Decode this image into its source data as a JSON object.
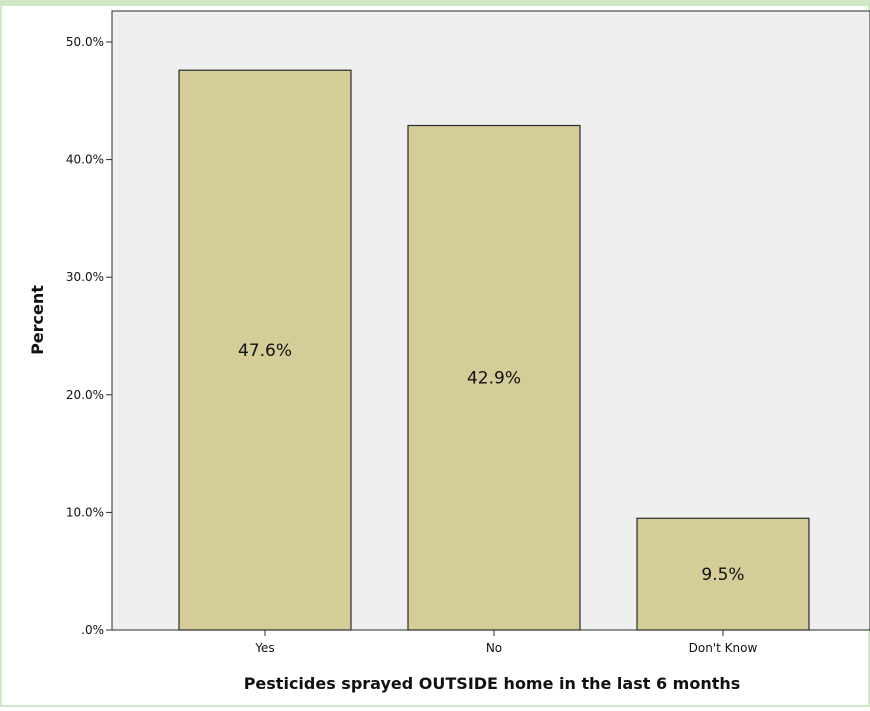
{
  "chart_data": {
    "type": "bar",
    "title": "",
    "xlabel": "Pesticides sprayed OUTSIDE home in the last 6 months",
    "ylabel": "Percent",
    "categories": [
      "Yes",
      "No",
      "Don't Know"
    ],
    "values": [
      47.6,
      42.9,
      9.5
    ],
    "data_labels": [
      "47.6%",
      "42.9%",
      "9.5%"
    ],
    "ylim": [
      0,
      50
    ],
    "yticks": [
      0,
      10,
      20,
      30,
      40,
      50
    ],
    "ytick_labels": [
      ".0%",
      "10.0%",
      "20.0%",
      "30.0%",
      "40.0%",
      "50.0%"
    ],
    "grid": false,
    "legend": "none",
    "colors": {
      "bar_fill": "#d4cd98",
      "bar_stroke": "#2b2b2b",
      "plot_background": "#efefef",
      "outer_border": "#cfe8c7"
    }
  }
}
